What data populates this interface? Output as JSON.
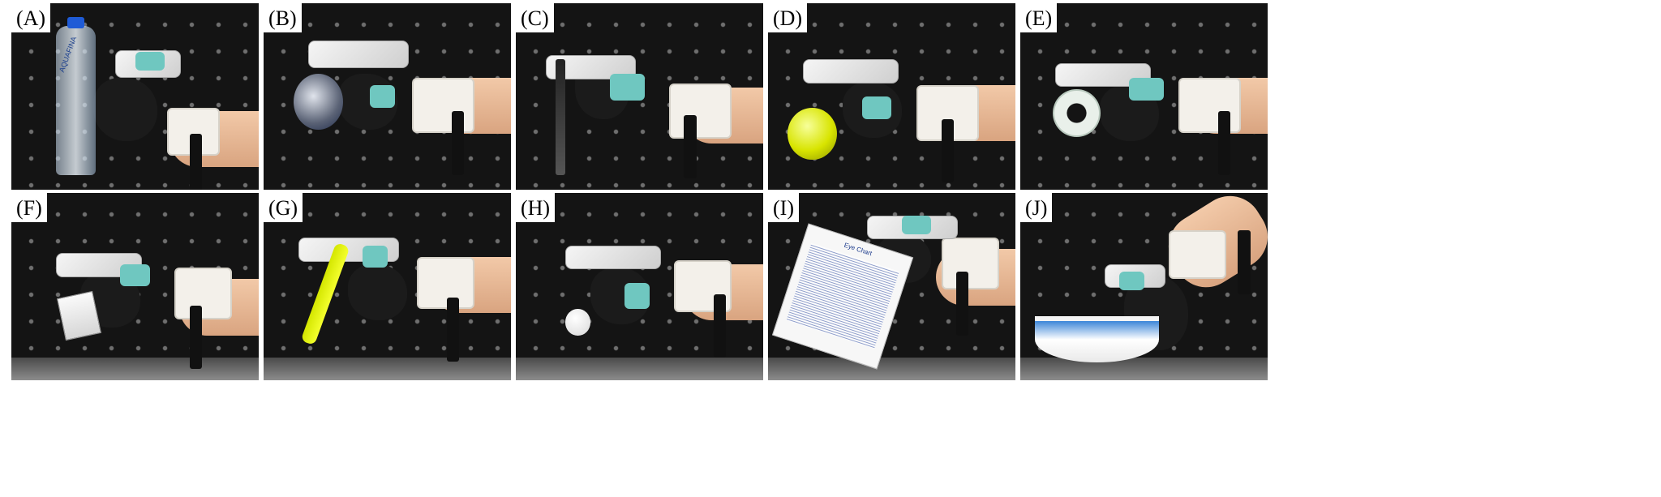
{
  "panels": [
    {
      "label": "(A)",
      "bottle_text": "AQUAFINA"
    },
    {
      "label": "(B)"
    },
    {
      "label": "(C)"
    },
    {
      "label": "(D)"
    },
    {
      "label": "(E)"
    },
    {
      "label": "(F)"
    },
    {
      "label": "(G)"
    },
    {
      "label": "(H)"
    },
    {
      "label": "(I)",
      "chart_title": "Eye Chart"
    },
    {
      "label": "(J)"
    }
  ]
}
